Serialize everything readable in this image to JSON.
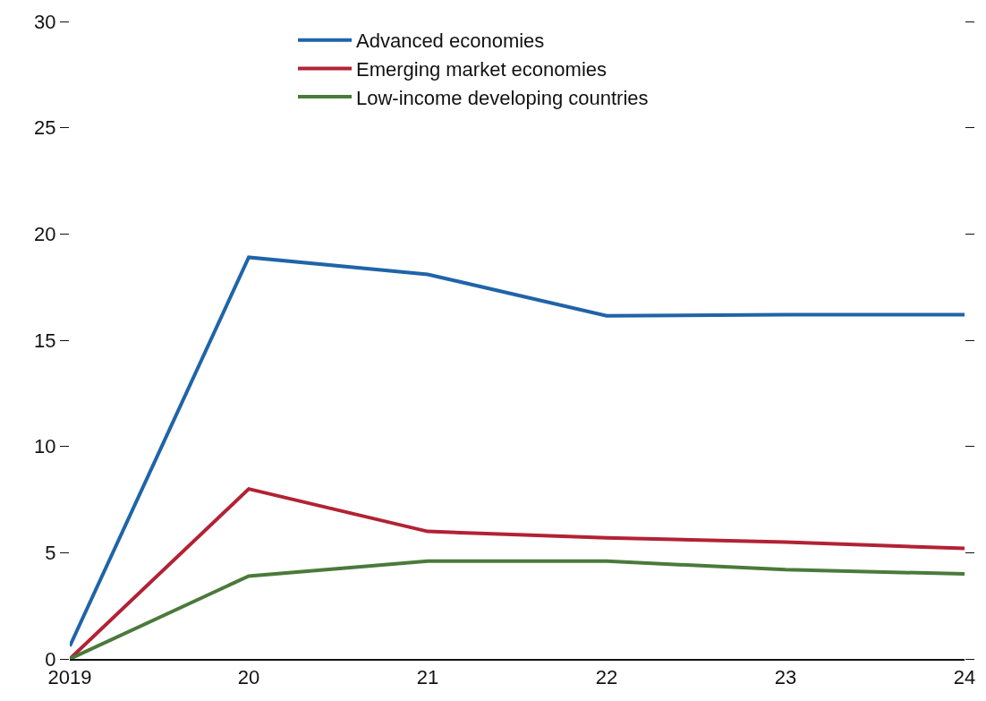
{
  "chart_data": {
    "type": "line",
    "x": [
      2019,
      2020,
      2021,
      2022,
      2023,
      2024
    ],
    "series": [
      {
        "name": "Advanced economies",
        "color": "#1f64a8",
        "values": [
          0.6,
          18.9,
          18.1,
          16.15,
          16.2,
          16.2
        ]
      },
      {
        "name": "Emerging market economies",
        "color": "#b22234",
        "values": [
          0,
          8.0,
          6.0,
          5.7,
          5.5,
          5.2
        ]
      },
      {
        "name": "Low-income developing countries",
        "color": "#4a7a3a",
        "values": [
          0,
          3.9,
          4.6,
          4.6,
          4.2,
          4.0
        ]
      }
    ],
    "xlim": [
      2019,
      2024
    ],
    "xticks": [
      2019,
      {
        "value": 2020,
        "label": "20"
      },
      {
        "value": 2021,
        "label": "21"
      },
      {
        "value": 2022,
        "label": "22"
      },
      {
        "value": 2023,
        "label": "23"
      },
      {
        "value": 2024,
        "label": "24"
      }
    ],
    "ylim": [
      0,
      30
    ],
    "yticks": [
      0,
      5,
      10,
      15,
      20,
      25,
      30
    ],
    "legend": "top",
    "marker": "none",
    "line_style": "solid"
  }
}
